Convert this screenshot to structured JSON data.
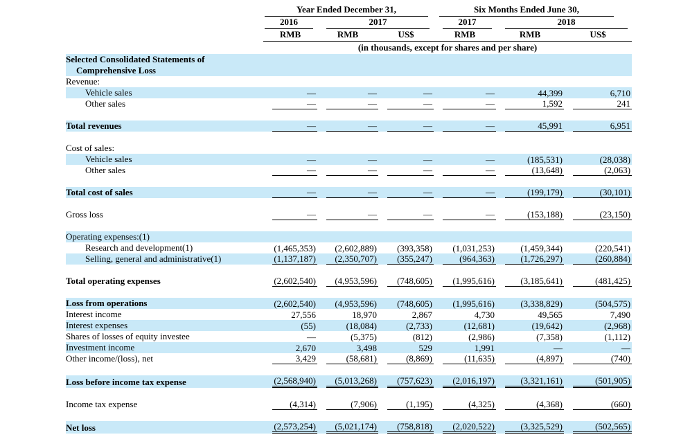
{
  "colors": {
    "row_highlight": "#c9e9f8",
    "rule": "#000000",
    "text": "#000000"
  },
  "header": {
    "group1": "Year Ended December 31,",
    "group2": "Six Months Ended June 30,",
    "year_cols": [
      {
        "label": "2016"
      },
      {
        "label": "2017"
      },
      {
        "label": "2017"
      },
      {
        "label": "2018"
      }
    ],
    "currencies": [
      "RMB",
      "RMB",
      "US$",
      "RMB",
      "RMB",
      "US$"
    ],
    "note": "(in thousands, except for shares and per share)"
  },
  "rows": [
    {
      "label": "Selected Consolidated Statements of",
      "label2": "Comprehensive Loss",
      "bold": true,
      "highlight": true,
      "indent": false,
      "underline": "none",
      "values": [
        "",
        "",
        "",
        "",
        "",
        ""
      ]
    },
    {
      "label": "Revenue:",
      "bold": false,
      "highlight": false,
      "indent": false,
      "underline": "none",
      "values": [
        "",
        "",
        "",
        "",
        "",
        ""
      ]
    },
    {
      "label": "Vehicle sales",
      "bold": false,
      "highlight": true,
      "indent": true,
      "underline": "none",
      "values": [
        "—",
        "—",
        "—",
        "—",
        "44,399",
        "6,710"
      ]
    },
    {
      "label": "Other sales",
      "bold": false,
      "highlight": false,
      "indent": true,
      "underline": "single",
      "values": [
        "—",
        "—",
        "—",
        "—",
        "1,592",
        "241"
      ]
    },
    {
      "spacer": true
    },
    {
      "label": "Total revenues",
      "bold": true,
      "highlight": true,
      "indent": false,
      "underline": "single",
      "values": [
        "—",
        "—",
        "—",
        "—",
        "45,991",
        "6,951"
      ]
    },
    {
      "spacer": true
    },
    {
      "label": "Cost of sales:",
      "bold": false,
      "highlight": false,
      "indent": false,
      "underline": "none",
      "values": [
        "",
        "",
        "",
        "",
        "",
        ""
      ]
    },
    {
      "label": "Vehicle sales",
      "bold": false,
      "highlight": true,
      "indent": true,
      "underline": "none",
      "values": [
        "—",
        "—",
        "—",
        "—",
        "(185,531)",
        "(28,038)"
      ]
    },
    {
      "label": "Other sales",
      "bold": false,
      "highlight": false,
      "indent": true,
      "underline": "single",
      "values": [
        "—",
        "—",
        "—",
        "—",
        "(13,648)",
        "(2,063)"
      ]
    },
    {
      "spacer": true
    },
    {
      "label": "Total cost of sales",
      "bold": true,
      "highlight": true,
      "indent": false,
      "underline": "single",
      "values": [
        "—",
        "—",
        "—",
        "—",
        "(199,179)",
        "(30,101)"
      ]
    },
    {
      "spacer": true
    },
    {
      "label": "Gross loss",
      "bold": false,
      "highlight": false,
      "indent": false,
      "underline": "single",
      "values": [
        "—",
        "—",
        "—",
        "—",
        "(153,188)",
        "(23,150)"
      ]
    },
    {
      "spacer": true
    },
    {
      "label": "Operating expenses:(1)",
      "bold": false,
      "highlight": true,
      "indent": false,
      "underline": "none",
      "values": [
        "",
        "",
        "",
        "",
        "",
        ""
      ]
    },
    {
      "label": "Research and development(1)",
      "bold": false,
      "highlight": false,
      "indent": true,
      "underline": "none",
      "values": [
        "(1,465,353)",
        "(2,602,889)",
        "(393,358)",
        "(1,031,253)",
        "(1,459,344)",
        "(220,541)"
      ]
    },
    {
      "label": "Selling, general and administrative(1)",
      "bold": false,
      "highlight": true,
      "indent": true,
      "underline": "single",
      "values": [
        "(1,137,187)",
        "(2,350,707)",
        "(355,247)",
        "(964,363)",
        "(1,726,297)",
        "(260,884)"
      ]
    },
    {
      "spacer": true
    },
    {
      "label": "Total operating expenses",
      "bold": true,
      "highlight": false,
      "indent": false,
      "underline": "single",
      "values": [
        "(2,602,540)",
        "(4,953,596)",
        "(748,605)",
        "(1,995,616)",
        "(3,185,641)",
        "(481,425)"
      ]
    },
    {
      "spacer": true
    },
    {
      "label": "Loss from operations",
      "bold": true,
      "highlight": true,
      "indent": false,
      "underline": "none",
      "values": [
        "(2,602,540)",
        "(4,953,596)",
        "(748,605)",
        "(1,995,616)",
        "(3,338,829)",
        "(504,575)"
      ]
    },
    {
      "label": "Interest income",
      "bold": false,
      "highlight": false,
      "indent": false,
      "underline": "none",
      "values": [
        "27,556",
        "18,970",
        "2,867",
        "4,730",
        "49,565",
        "7,490"
      ]
    },
    {
      "label": "Interest expenses",
      "bold": false,
      "highlight": true,
      "indent": false,
      "underline": "none",
      "values": [
        "(55)",
        "(18,084)",
        "(2,733)",
        "(12,681)",
        "(19,642)",
        "(2,968)"
      ]
    },
    {
      "label": "Shares of losses of equity investee",
      "bold": false,
      "highlight": false,
      "indent": false,
      "underline": "none",
      "values": [
        "—",
        "(5,375)",
        "(812)",
        "(2,986)",
        "(7,358)",
        "(1,112)"
      ]
    },
    {
      "label": "Investment income",
      "bold": false,
      "highlight": true,
      "indent": false,
      "underline": "none",
      "values": [
        "2,670",
        "3,498",
        "529",
        "1,991",
        "—",
        "—"
      ]
    },
    {
      "label": "Other income/(loss), net",
      "bold": false,
      "highlight": false,
      "indent": false,
      "underline": "single",
      "values": [
        "3,429",
        "(58,681)",
        "(8,869)",
        "(11,635)",
        "(4,897)",
        "(740)"
      ]
    },
    {
      "spacer": true
    },
    {
      "label": "Loss before income tax expense",
      "bold": true,
      "highlight": true,
      "indent": false,
      "underline": "double",
      "values": [
        "(2,568,940)",
        "(5,013,268)",
        "(757,623)",
        "(2,016,197)",
        "(3,321,161)",
        "(501,905)"
      ]
    },
    {
      "spacer": true
    },
    {
      "label": "Income tax expense",
      "bold": false,
      "highlight": false,
      "indent": false,
      "underline": "single",
      "values": [
        "(4,314)",
        "(7,906)",
        "(1,195)",
        "(4,325)",
        "(4,368)",
        "(660)"
      ]
    },
    {
      "spacer": true
    },
    {
      "label": "Net loss",
      "bold": true,
      "highlight": true,
      "indent": false,
      "underline": "double",
      "values": [
        "(2,573,254)",
        "(5,021,174)",
        "(758,818)",
        "(2,020,522)",
        "(3,325,529)",
        "(502,565)"
      ]
    }
  ]
}
